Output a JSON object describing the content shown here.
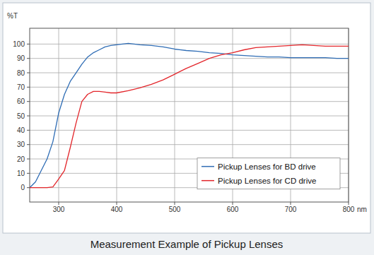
{
  "chart_data": {
    "type": "line",
    "title": "Measurement Example of Pickup Lenses",
    "x_label": "nm",
    "y_label": "%T",
    "x": [
      250,
      260,
      270,
      280,
      290,
      300,
      310,
      320,
      330,
      340,
      350,
      360,
      370,
      380,
      390,
      400,
      420,
      440,
      460,
      480,
      500,
      520,
      540,
      560,
      580,
      600,
      620,
      640,
      660,
      680,
      700,
      720,
      740,
      760,
      780,
      800
    ],
    "series": [
      {
        "name": "Pickup Lenses for BD drive",
        "color": "#2f6db5",
        "values": [
          0,
          4,
          12,
          20,
          32,
          52,
          65,
          74,
          80,
          86,
          91,
          94,
          96,
          98,
          99,
          99.5,
          100.5,
          99.5,
          99,
          98,
          96.5,
          95.5,
          95,
          94,
          93.5,
          92.5,
          92,
          91.5,
          91,
          91,
          90.5,
          90.5,
          90.5,
          90.5,
          90,
          90
        ]
      },
      {
        "name": "Pickup Lenses for CD drive",
        "color": "#e3262b",
        "values": [
          0,
          0,
          0,
          0,
          0.5,
          6,
          12,
          28,
          45,
          60,
          65,
          67,
          67,
          66.5,
          66,
          66,
          67.5,
          69.5,
          72,
          75,
          79,
          83,
          86.5,
          90,
          92.5,
          94,
          96,
          97.5,
          98,
          98.5,
          99,
          99.5,
          99,
          98.5,
          98.5,
          98.5
        ]
      }
    ],
    "xlim": [
      250,
      800
    ],
    "ylim": [
      -10,
      111
    ],
    "xticks": [
      300,
      400,
      500,
      600,
      700,
      800
    ],
    "yticks": [
      0,
      10,
      20,
      30,
      40,
      50,
      60,
      70,
      80,
      90,
      100
    ],
    "grid": true,
    "legend": "lower right"
  }
}
